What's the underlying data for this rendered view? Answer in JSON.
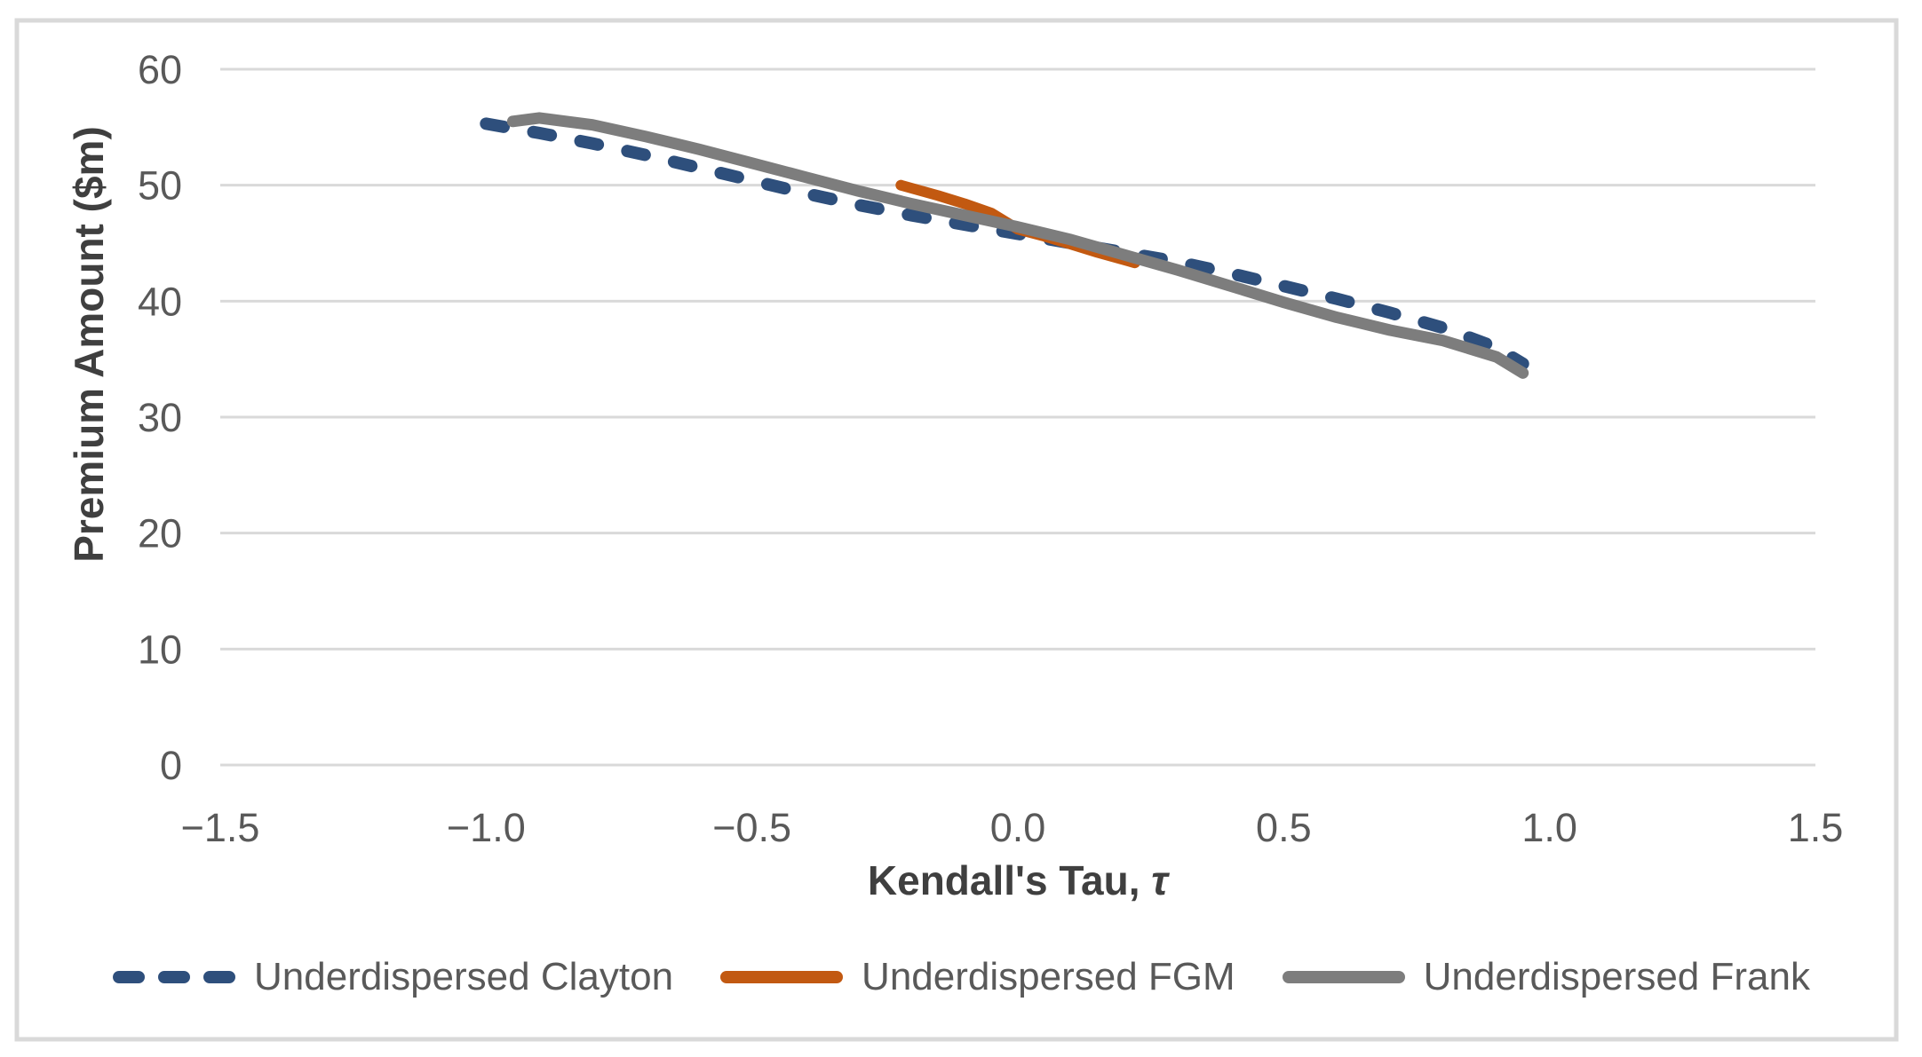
{
  "figure": {
    "background": "#FFFFFF",
    "border_color": "#D9D9D9",
    "grid_color": "#D9D9D9",
    "tick_color": "#595959",
    "title_color": "#3F3F3F"
  },
  "chart_data": {
    "type": "line",
    "title": "",
    "xlabel": "Kendall's Tau, τ",
    "xlabel_main": "Kendall's Tau,",
    "xlabel_symbol": "τ",
    "ylabel": "Premium Amount ($m)",
    "xlim": [
      -1.5,
      1.5
    ],
    "ylim": [
      0,
      60
    ],
    "x_ticks": [
      -1.5,
      -1.0,
      -0.5,
      0.0,
      0.5,
      1.0,
      1.5
    ],
    "x_tick_labels": [
      "−1.5",
      "−1.0",
      "−0.5",
      "0.0",
      "0.5",
      "1.0",
      "1.5"
    ],
    "y_ticks": [
      0,
      10,
      20,
      30,
      40,
      50,
      60
    ],
    "y_tick_labels": [
      "0",
      "10",
      "20",
      "30",
      "40",
      "50",
      "60"
    ],
    "grid": "horizontal",
    "legend_position": "bottom",
    "series": [
      {
        "id": "underdispersed-clayton",
        "name": "Underdispersed Clayton",
        "color": "#2E4F7C",
        "style": "dashed",
        "width": 14,
        "points": [
          [
            -1.0,
            55.3
          ],
          [
            -0.9,
            54.5
          ],
          [
            -0.8,
            53.6
          ],
          [
            -0.7,
            52.6
          ],
          [
            -0.6,
            51.5
          ],
          [
            -0.5,
            50.4
          ],
          [
            -0.4,
            49.3
          ],
          [
            -0.3,
            48.3
          ],
          [
            -0.2,
            47.4
          ],
          [
            -0.1,
            46.6
          ],
          [
            0.0,
            45.8
          ],
          [
            0.1,
            45.0
          ],
          [
            0.2,
            44.2
          ],
          [
            0.3,
            43.4
          ],
          [
            0.4,
            42.4
          ],
          [
            0.5,
            41.3
          ],
          [
            0.6,
            40.2
          ],
          [
            0.7,
            39.0
          ],
          [
            0.8,
            37.7
          ],
          [
            0.9,
            36.0
          ],
          [
            0.95,
            34.6
          ]
        ]
      },
      {
        "id": "underdispersed-fgm",
        "name": "Underdispersed FGM",
        "color": "#C25911",
        "style": "solid",
        "width": 12,
        "points": [
          [
            -0.22,
            50.0
          ],
          [
            -0.15,
            49.1
          ],
          [
            -0.1,
            48.4
          ],
          [
            -0.05,
            47.6
          ],
          [
            0.0,
            46.2
          ],
          [
            0.05,
            45.6
          ],
          [
            0.1,
            44.9
          ],
          [
            0.15,
            44.2
          ],
          [
            0.22,
            43.3
          ]
        ]
      },
      {
        "id": "underdispersed-frank",
        "name": "Underdispersed Frank",
        "color": "#7D7D7D",
        "style": "solid",
        "width": 13,
        "points": [
          [
            -0.95,
            55.5
          ],
          [
            -0.9,
            55.8
          ],
          [
            -0.8,
            55.2
          ],
          [
            -0.7,
            54.2
          ],
          [
            -0.6,
            53.1
          ],
          [
            -0.5,
            51.9
          ],
          [
            -0.4,
            50.7
          ],
          [
            -0.3,
            49.5
          ],
          [
            -0.2,
            48.4
          ],
          [
            -0.1,
            47.4
          ],
          [
            0.0,
            46.4
          ],
          [
            0.1,
            45.3
          ],
          [
            0.2,
            44.0
          ],
          [
            0.3,
            42.7
          ],
          [
            0.4,
            41.3
          ],
          [
            0.5,
            39.9
          ],
          [
            0.6,
            38.6
          ],
          [
            0.7,
            37.5
          ],
          [
            0.8,
            36.6
          ],
          [
            0.9,
            35.2
          ],
          [
            0.95,
            33.8
          ]
        ]
      }
    ]
  }
}
